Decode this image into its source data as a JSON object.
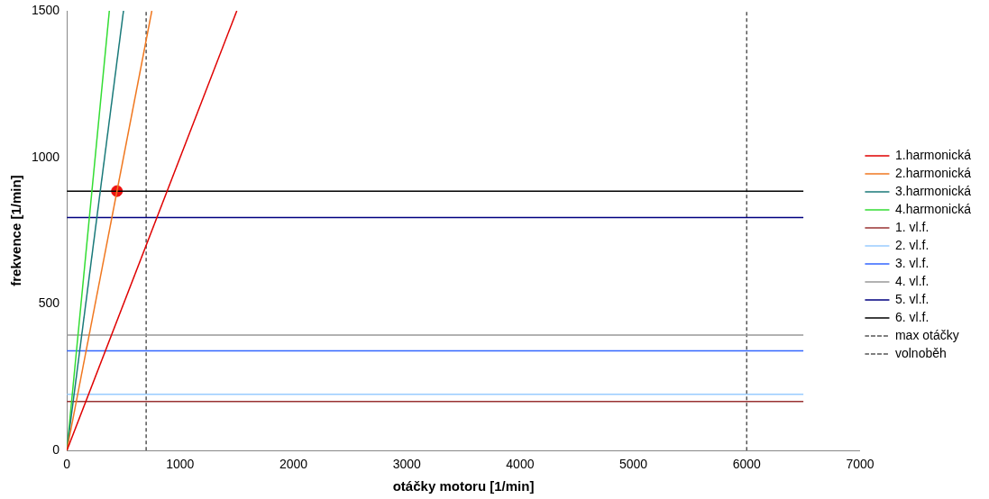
{
  "chart_data": {
    "type": "line",
    "xlabel": "otáčky motoru [1/min]",
    "ylabel": "frekvence [1/min]",
    "xlim": [
      0,
      7000
    ],
    "xticks": [
      0,
      1000,
      2000,
      3000,
      4000,
      5000,
      6000,
      7000
    ],
    "ylim": [
      0,
      1500
    ],
    "yticks": [
      0,
      500,
      1000,
      1500
    ],
    "grid": false,
    "legend": "right",
    "marker": "none",
    "line_style": "solid",
    "series": [
      {
        "name": "1.harmonická",
        "color": "#e00000",
        "x": [
          0,
          1500
        ],
        "values": [
          0,
          1500
        ]
      },
      {
        "name": "2.harmonická",
        "color": "#f07820",
        "x": [
          0,
          750
        ],
        "values": [
          0,
          1500
        ]
      },
      {
        "name": "3.harmonická",
        "color": "#1a7a7a",
        "x": [
          0,
          500
        ],
        "values": [
          0,
          1500
        ]
      },
      {
        "name": "4.harmonická",
        "color": "#33dd33",
        "x": [
          0,
          375
        ],
        "values": [
          0,
          1500
        ]
      },
      {
        "name": "1. vl.f.",
        "color": "#993333",
        "x": [
          0,
          6500
        ],
        "values": [
          167,
          167
        ]
      },
      {
        "name": "2. vl.f.",
        "color": "#99ccff",
        "x": [
          0,
          6500
        ],
        "values": [
          192,
          192
        ]
      },
      {
        "name": "3. vl.f.",
        "color": "#3366ff",
        "x": [
          0,
          6500
        ],
        "values": [
          340,
          340
        ]
      },
      {
        "name": "4. vl.f.",
        "color": "#999999",
        "x": [
          0,
          6500
        ],
        "values": [
          394,
          394
        ]
      },
      {
        "name": "5. vl.f.",
        "color": "#000080",
        "x": [
          0,
          6500
        ],
        "values": [
          795,
          795
        ]
      },
      {
        "name": "6. vl.f.",
        "color": "#000000",
        "x": [
          0,
          6500
        ],
        "values": [
          885,
          885
        ]
      },
      {
        "name": "max otáčky",
        "color": "#555555",
        "line_style": "dashed",
        "x": [
          6000,
          6000
        ],
        "values": [
          0,
          1500
        ]
      },
      {
        "name": "volnoběh",
        "color": "#555555",
        "line_style": "dashed",
        "x": [
          700,
          700
        ],
        "values": [
          0,
          1500
        ]
      },
      {
        "type": "scatter",
        "marker": "circle",
        "color": "#ee1111",
        "x": [
          442
        ],
        "values": [
          885
        ]
      }
    ]
  }
}
